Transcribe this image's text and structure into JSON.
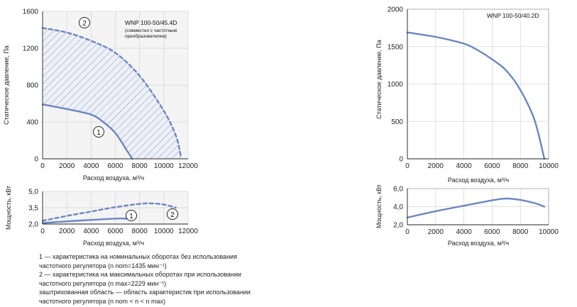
{
  "colors": {
    "curve": "#6a86c2",
    "grid": "#d4d4d4",
    "panel_bg": "#eef0f6",
    "hatch": "#7a96cc",
    "axis": "#222222"
  },
  "chart_data": [
    {
      "id": "left-pressure",
      "type": "line",
      "title": "WNP 100-50/45.4D",
      "subtitle": "(совместно с частотным\nпреобразователем)",
      "xlabel": "Расход воздуха, м³/ч",
      "ylabel": "Статическое давление, Па",
      "xlim": [
        0,
        12000
      ],
      "ylim": [
        0,
        1600
      ],
      "xticks": [
        "0",
        "2000",
        "4000",
        "6000",
        "8000",
        "10000",
        "12000"
      ],
      "yticks": [
        "0",
        "400",
        "800",
        "1200",
        "1600"
      ],
      "grid": true,
      "shaded_region": "between curve 1 and curve 2",
      "series": [
        {
          "name": "1",
          "style": "solid",
          "x": [
            0,
            2000,
            4000,
            5000,
            6000,
            7000,
            7400
          ],
          "y": [
            590,
            540,
            480,
            400,
            280,
            80,
            0
          ]
        },
        {
          "name": "2",
          "style": "dashed",
          "x": [
            0,
            2000,
            4000,
            6000,
            8000,
            10000,
            11000,
            11400
          ],
          "y": [
            1420,
            1370,
            1280,
            1150,
            900,
            520,
            250,
            30
          ]
        }
      ]
    },
    {
      "id": "left-power",
      "type": "line",
      "xlabel": "Расход воздуха, м³/ч",
      "ylabel": "Мощность, кВт",
      "xlim": [
        0,
        12000
      ],
      "ylim": [
        2.0,
        5.0
      ],
      "xticks": [
        "0",
        "2000",
        "4000",
        "6000",
        "8000",
        "10000",
        "12000"
      ],
      "yticks": [
        "2,0",
        "3,5",
        "5,0"
      ],
      "grid": true,
      "series": [
        {
          "name": "1",
          "style": "solid",
          "x": [
            0,
            2000,
            4000,
            6000,
            7000
          ],
          "y": [
            2.1,
            2.25,
            2.38,
            2.5,
            2.5
          ]
        },
        {
          "name": "2",
          "style": "dashed",
          "x": [
            0,
            2000,
            4000,
            6000,
            8000,
            9000,
            10000,
            11000
          ],
          "y": [
            2.3,
            2.75,
            3.15,
            3.55,
            3.85,
            3.9,
            3.8,
            3.5
          ]
        }
      ]
    },
    {
      "id": "right-pressure",
      "type": "line",
      "title": "WNP 100-50/40.2D",
      "xlabel": "Расход воздуха, м³/ч",
      "ylabel": "Статическое давление, Па",
      "xlim": [
        0,
        10000
      ],
      "ylim": [
        0,
        2000
      ],
      "xticks": [
        "0",
        "2000",
        "4000",
        "6000",
        "8000",
        "10000"
      ],
      "yticks": [
        "0",
        "500",
        "1000",
        "1500",
        "2000"
      ],
      "grid": true,
      "series": [
        {
          "style": "solid",
          "x": [
            0,
            2000,
            4000,
            5000,
            6000,
            7000,
            8000,
            9000,
            9700
          ],
          "y": [
            1690,
            1630,
            1540,
            1450,
            1330,
            1180,
            920,
            520,
            0
          ]
        }
      ]
    },
    {
      "id": "right-power",
      "type": "line",
      "xlabel": "Расход воздуха, м³/ч",
      "ylabel": "Мощность, кВт",
      "xlim": [
        0,
        10000
      ],
      "ylim": [
        2.0,
        6.0
      ],
      "xticks": [
        "0",
        "2000",
        "4000",
        "6000",
        "8000",
        "10000"
      ],
      "yticks": [
        "2,0",
        "4,0",
        "6,0"
      ],
      "grid": true,
      "series": [
        {
          "style": "solid",
          "x": [
            0,
            2000,
            4000,
            6000,
            7000,
            8000,
            9000,
            9700
          ],
          "y": [
            2.8,
            3.5,
            4.1,
            4.7,
            4.9,
            4.75,
            4.4,
            4.0
          ]
        }
      ]
    }
  ],
  "legend": {
    "line1a": "1 — характеристика на номинальных оборотах без использования",
    "line1b": "частотного регулятора (n nom=1435 мин⁻¹)",
    "line2a": "2 — характеристика на максимальных оборотах при использовании",
    "line2b": "частотного регулятора (n max=2229 мин⁻¹)",
    "line3a": "заштрихованная область — область характеристик при использовании",
    "line3b": "частотного регулятора (n nom < n < n max)"
  }
}
